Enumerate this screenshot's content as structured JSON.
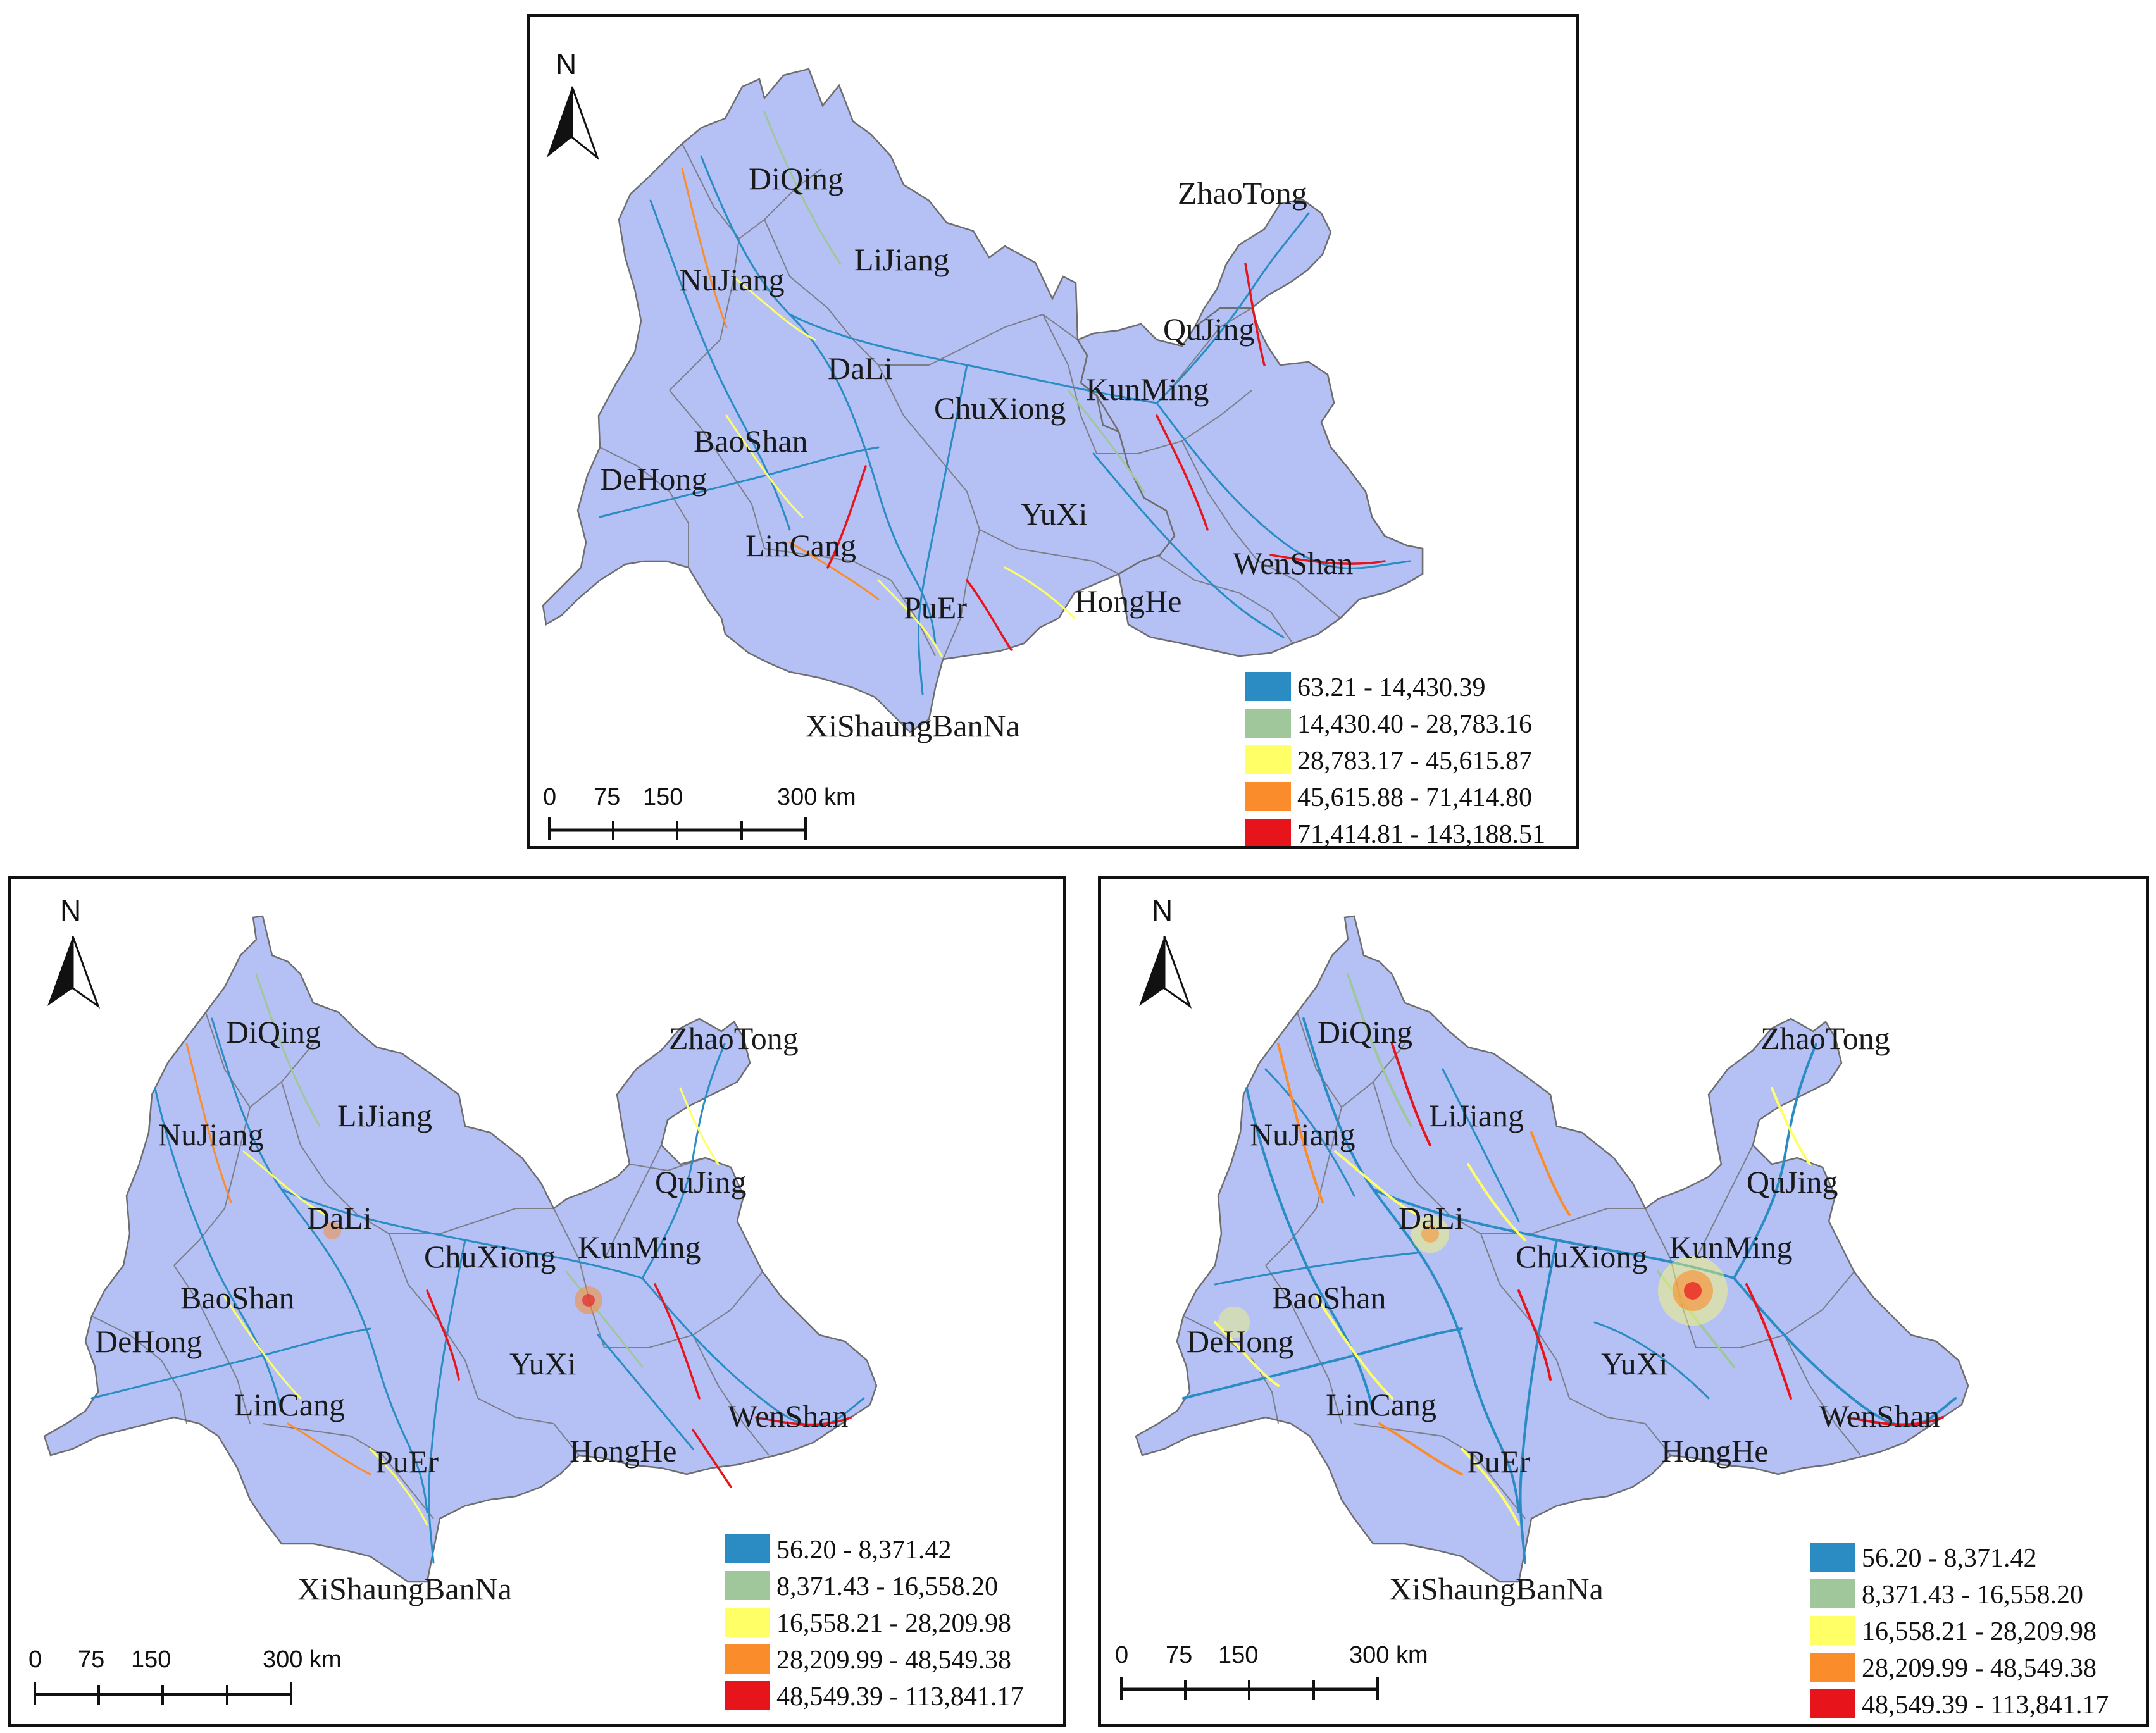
{
  "panels": [
    {
      "id": "top",
      "north": "N",
      "scale": {
        "ticks": [
          "0",
          "75",
          "150",
          "300 km"
        ]
      },
      "prefectures": [
        "DiQing",
        "NuJiang",
        "LiJiang",
        "ZhaoTong",
        "QuJing",
        "DaLi",
        "KunMing",
        "ChuXiong",
        "BaoShan",
        "DeHong",
        "YuXi",
        "LinCang",
        "WenShan",
        "HongHe",
        "PuEr",
        "XiShaungBanNa"
      ],
      "legend": [
        {
          "label": "63.21 - 14,430.39",
          "color": "#2b8cc4"
        },
        {
          "label": "14,430.40 - 28,783.16",
          "color": "#9fc79b"
        },
        {
          "label": "28,783.17 - 45,615.87",
          "color": "#ffff66"
        },
        {
          "label": "45,615.88 - 71,414.80",
          "color": "#fb8c2c"
        },
        {
          "label": "71,414.81 - 143,188.51",
          "color": "#e8141c"
        }
      ]
    },
    {
      "id": "bottom-left",
      "north": "N",
      "scale": {
        "ticks": [
          "0",
          "75",
          "150",
          "300 km"
        ]
      },
      "prefectures": [
        "DiQing",
        "NuJiang",
        "LiJiang",
        "ZhaoTong",
        "QuJing",
        "DaLi",
        "KunMing",
        "ChuXiong",
        "BaoShan",
        "DeHong",
        "YuXi",
        "LinCang",
        "WenShan",
        "HongHe",
        "PuEr",
        "XiShaungBanNa"
      ],
      "legend": [
        {
          "label": "56.20 - 8,371.42",
          "color": "#2b8cc4"
        },
        {
          "label": "8,371.43 - 16,558.20",
          "color": "#9fc79b"
        },
        {
          "label": "16,558.21 - 28,209.98",
          "color": "#ffff66"
        },
        {
          "label": "28,209.99 - 48,549.38",
          "color": "#fb8c2c"
        },
        {
          "label": "48,549.39 - 113,841.17",
          "color": "#e8141c"
        }
      ]
    },
    {
      "id": "bottom-right",
      "north": "N",
      "scale": {
        "ticks": [
          "0",
          "75",
          "150",
          "300 km"
        ]
      },
      "prefectures": [
        "DiQing",
        "NuJiang",
        "LiJiang",
        "ZhaoTong",
        "QuJing",
        "DaLi",
        "KunMing",
        "ChuXiong",
        "BaoShan",
        "DeHong",
        "YuXi",
        "LinCang",
        "WenShan",
        "HongHe",
        "PuEr",
        "XiShaungBanNa"
      ],
      "legend": [
        {
          "label": "56.20 - 8,371.42",
          "color": "#2b8cc4"
        },
        {
          "label": "8,371.43 - 16,558.20",
          "color": "#9fc79b"
        },
        {
          "label": "16,558.21 - 28,209.98",
          "color": "#ffff66"
        },
        {
          "label": "28,209.99 - 48,549.38",
          "color": "#fb8c2c"
        },
        {
          "label": "48,549.39 - 113,841.17",
          "color": "#e8141c"
        }
      ]
    }
  ],
  "colors": {
    "land": "#b5c1f5",
    "boundary": "#6e6e6e"
  }
}
